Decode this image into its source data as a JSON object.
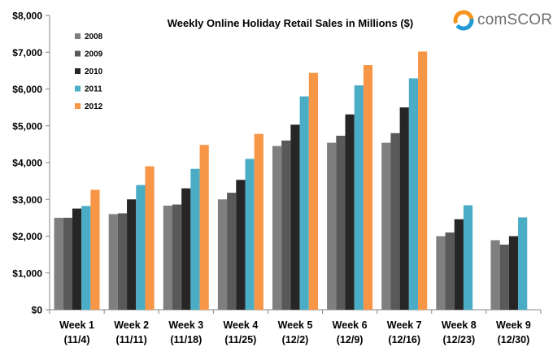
{
  "brand": {
    "name": "comScore",
    "display": "comSCORE.",
    "colors": {
      "text": "#6d6e71",
      "logo_orange": "#f7941d",
      "logo_blue": "#1f9ad6"
    },
    "icon": "comscore-logo-icon"
  },
  "chart_data": {
    "type": "bar",
    "title": "Weekly Online Holiday Retail Sales in Millions ($)",
    "xlabel": "",
    "ylabel": "",
    "ylim": [
      0,
      8000
    ],
    "yticks": [
      0,
      1000,
      2000,
      3000,
      4000,
      5000,
      6000,
      7000,
      8000
    ],
    "ytick_labels": [
      "$0",
      "$1,000",
      "$2,000",
      "$3,000",
      "$4,000",
      "$5,000",
      "$6,000",
      "$7,000",
      "$8,000"
    ],
    "grid": false,
    "legend_position": "top-left",
    "categories": [
      [
        "Week 1",
        "(11/4)"
      ],
      [
        "Week 2",
        "(11/11)"
      ],
      [
        "Week 3",
        "(11/18)"
      ],
      [
        "Week 4",
        "(11/25)"
      ],
      [
        "Week 5",
        "(12/2)"
      ],
      [
        "Week 6",
        "(12/9)"
      ],
      [
        "Week 7",
        "(12/16)"
      ],
      [
        "Week 8",
        "(12/23)"
      ],
      [
        "Week 9",
        "(12/30)"
      ]
    ],
    "series": [
      {
        "name": "2008",
        "color": "#7f7f7f",
        "values": [
          2500,
          2600,
          2830,
          3000,
          4450,
          4540,
          4540,
          2000,
          1890
        ]
      },
      {
        "name": "2009",
        "color": "#595959",
        "values": [
          2500,
          2620,
          2860,
          3180,
          4600,
          4730,
          4800,
          2100,
          1770
        ]
      },
      {
        "name": "2010",
        "color": "#262626",
        "values": [
          2750,
          3000,
          3300,
          3530,
          5030,
          5310,
          5500,
          2460,
          2000
        ]
      },
      {
        "name": "2011",
        "color": "#4bacc6",
        "values": [
          2820,
          3390,
          3830,
          4100,
          5800,
          6100,
          6290,
          2840,
          2510
        ]
      },
      {
        "name": "2012",
        "color": "#f79646",
        "values": [
          3260,
          3900,
          4480,
          4780,
          6440,
          6650,
          7020,
          null,
          null
        ]
      }
    ]
  }
}
